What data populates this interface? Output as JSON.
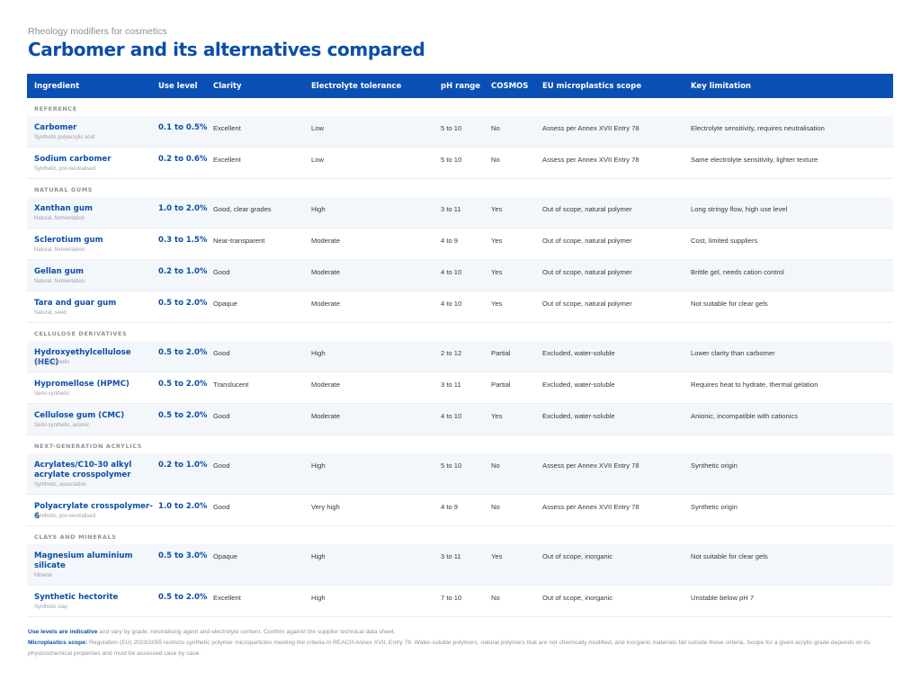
{
  "header": {
    "kicker": "Rheology modifiers for cosmetics",
    "title": "Carbomer and its alternatives compared"
  },
  "table": {
    "columns": [
      "Ingredient",
      "Use level",
      "Clarity",
      "Electrolyte tolerance",
      "pH range",
      "COSMOS",
      "EU microplastics scope",
      "Key limitation"
    ],
    "sections": [
      {
        "label": "REFERENCE",
        "rows": [
          {
            "name": "Carbomer",
            "sub": "Synthetic polyacrylic acid",
            "use": "0.1 to 0.5%",
            "clarity": "Excellent",
            "electrolyte": "Low",
            "ph": "5 to 10",
            "cosmos": "No",
            "eu": "Assess per Annex XVII Entry 78",
            "limitation": "Electrolyte sensitivity, requires neutralisation"
          },
          {
            "name": "Sodium carbomer",
            "sub": "Synthetic, pre-neutralised",
            "use": "0.2 to 0.6%",
            "clarity": "Excellent",
            "electrolyte": "Low",
            "ph": "5 to 10",
            "cosmos": "No",
            "eu": "Assess per Annex XVII Entry 78",
            "limitation": "Same electrolyte sensitivity, lighter texture"
          }
        ]
      },
      {
        "label": "NATURAL GUMS",
        "rows": [
          {
            "name": "Xanthan gum",
            "sub": "Natural, fermentation",
            "use": "1.0 to 2.0%",
            "clarity": "Good, clear grades",
            "electrolyte": "High",
            "ph": "3 to 11",
            "cosmos": "Yes",
            "eu": "Out of scope, natural polymer",
            "limitation": "Long stringy flow, high use level"
          },
          {
            "name": "Sclerotium gum",
            "sub": "Natural, fermentation",
            "use": "0.3 to 1.5%",
            "clarity": "Near-transparent",
            "electrolyte": "Moderate",
            "ph": "4 to 9",
            "cosmos": "Yes",
            "eu": "Out of scope, natural polymer",
            "limitation": "Cost, limited suppliers"
          },
          {
            "name": "Gellan gum",
            "sub": "Natural, fermentation",
            "use": "0.2 to 1.0%",
            "clarity": "Good",
            "electrolyte": "Moderate",
            "ph": "4 to 10",
            "cosmos": "Yes",
            "eu": "Out of scope, natural polymer",
            "limitation": "Brittle gel, needs cation control"
          },
          {
            "name": "Tara and guar gum",
            "sub": "Natural, seed",
            "use": "0.5 to 2.0%",
            "clarity": "Opaque",
            "electrolyte": "Moderate",
            "ph": "4 to 10",
            "cosmos": "Yes",
            "eu": "Out of scope, natural polymer",
            "limitation": "Not suitable for clear gels"
          }
        ]
      },
      {
        "label": "CELLULOSE DERIVATIVES",
        "rows": [
          {
            "name": "Hydroxyethylcellulose (HEC)",
            "sub": "Semi-synthetic",
            "use": "0.5 to 2.0%",
            "clarity": "Good",
            "electrolyte": "High",
            "ph": "2 to 12",
            "cosmos": "Partial",
            "eu": "Excluded, water-soluble",
            "limitation": "Lower clarity than carbomer"
          },
          {
            "name": "Hypromellose (HPMC)",
            "sub": "Semi-synthetic",
            "use": "0.5 to 2.0%",
            "clarity": "Translucent",
            "electrolyte": "Moderate",
            "ph": "3 to 11",
            "cosmos": "Partial",
            "eu": "Excluded, water-soluble",
            "limitation": "Requires heat to hydrate, thermal gelation"
          },
          {
            "name": "Cellulose gum (CMC)",
            "sub": "Semi-synthetic, anionic",
            "use": "0.5 to 2.0%",
            "clarity": "Good",
            "electrolyte": "Moderate",
            "ph": "4 to 10",
            "cosmos": "Yes",
            "eu": "Excluded, water-soluble",
            "limitation": "Anionic, incompatible with cationics"
          }
        ]
      },
      {
        "label": "NEXT-GENERATION ACRYLICS",
        "rows": [
          {
            "name": "Acrylates/C10-30 alkyl acrylate crosspolymer",
            "sub": "Synthetic, associative",
            "use": "0.2 to 1.0%",
            "clarity": "Good",
            "electrolyte": "High",
            "ph": "5 to 10",
            "cosmos": "No",
            "eu": "Assess per Annex XVII Entry 78",
            "limitation": "Synthetic origin"
          },
          {
            "name": "Polyacrylate crosspolymer-6",
            "sub": "Synthetic, pre-neutralised",
            "use": "1.0 to 2.0%",
            "clarity": "Good",
            "electrolyte": "Very high",
            "ph": "4 to 9",
            "cosmos": "No",
            "eu": "Assess per Annex XVII Entry 78",
            "limitation": "Synthetic origin"
          }
        ]
      },
      {
        "label": "CLAYS AND MINERALS",
        "rows": [
          {
            "name": "Magnesium aluminium silicate",
            "sub": "Mineral",
            "use": "0.5 to 3.0%",
            "clarity": "Opaque",
            "electrolyte": "High",
            "ph": "3 to 11",
            "cosmos": "Yes",
            "eu": "Out of scope, inorganic",
            "limitation": "Not suitable for clear gels"
          },
          {
            "name": "Synthetic hectorite",
            "sub": "Synthetic clay",
            "use": "0.5 to 2.0%",
            "clarity": "Excellent",
            "electrolyte": "High",
            "ph": "7 to 10",
            "cosmos": "No",
            "eu": "Out of scope, inorganic",
            "limitation": "Unstable below pH 7"
          }
        ]
      }
    ]
  },
  "footnotes": {
    "note1_lead": "Use levels are indicative",
    "note1_text": " and vary by grade, neutralising agent and electrolyte content. Confirm against the supplier technical data sheet.",
    "note2_lead": "Microplastics scope:",
    "note2_text": " Regulation (EU) 2023/2055 restricts synthetic polymer microparticles meeting the criteria in REACH Annex XVII, Entry 78. Water-soluble polymers, natural polymers that are not chemically modified, and inorganic materials fall outside those criteria. Scope for a given acrylic grade depends on its physicochemical properties and must be assessed case by case."
  }
}
